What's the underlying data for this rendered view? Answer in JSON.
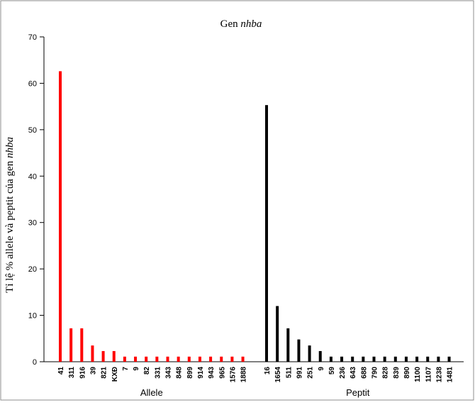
{
  "chart_data": {
    "type": "bar",
    "title_prefix": "Gen ",
    "title_italic": "nhba",
    "ylabel_prefix": "Tỉ lệ % allele và  peptit của gen ",
    "ylabel_italic": "nhba",
    "ylim": [
      0,
      70
    ],
    "yticks": [
      0,
      10,
      20,
      30,
      40,
      50,
      60,
      70
    ],
    "grid": false,
    "series": [
      {
        "name": "Allele",
        "color": "#ff0000",
        "categories": [
          "41",
          "311",
          "916",
          "39",
          "821",
          "KXĐ",
          "7",
          "9",
          "82",
          "331",
          "343",
          "848",
          "899",
          "914",
          "943",
          "965",
          "1576",
          "1888"
        ],
        "values": [
          62.6,
          7.2,
          7.2,
          3.5,
          2.3,
          2.3,
          1.1,
          1.1,
          1.1,
          1.1,
          1.1,
          1.1,
          1.1,
          1.1,
          1.1,
          1.1,
          1.1,
          1.1
        ]
      },
      {
        "name": "Peptit",
        "color": "#000000",
        "categories": [
          "16",
          "1654",
          "511",
          "991",
          "251",
          "9",
          "59",
          "236",
          "643",
          "688",
          "790",
          "828",
          "839",
          "890",
          "1100",
          "1107",
          "1238",
          "1481"
        ],
        "values": [
          55.3,
          12.0,
          7.2,
          4.8,
          3.5,
          2.3,
          1.1,
          1.1,
          1.1,
          1.1,
          1.1,
          1.1,
          1.1,
          1.1,
          1.1,
          1.1,
          1.1,
          1.1
        ]
      }
    ]
  }
}
